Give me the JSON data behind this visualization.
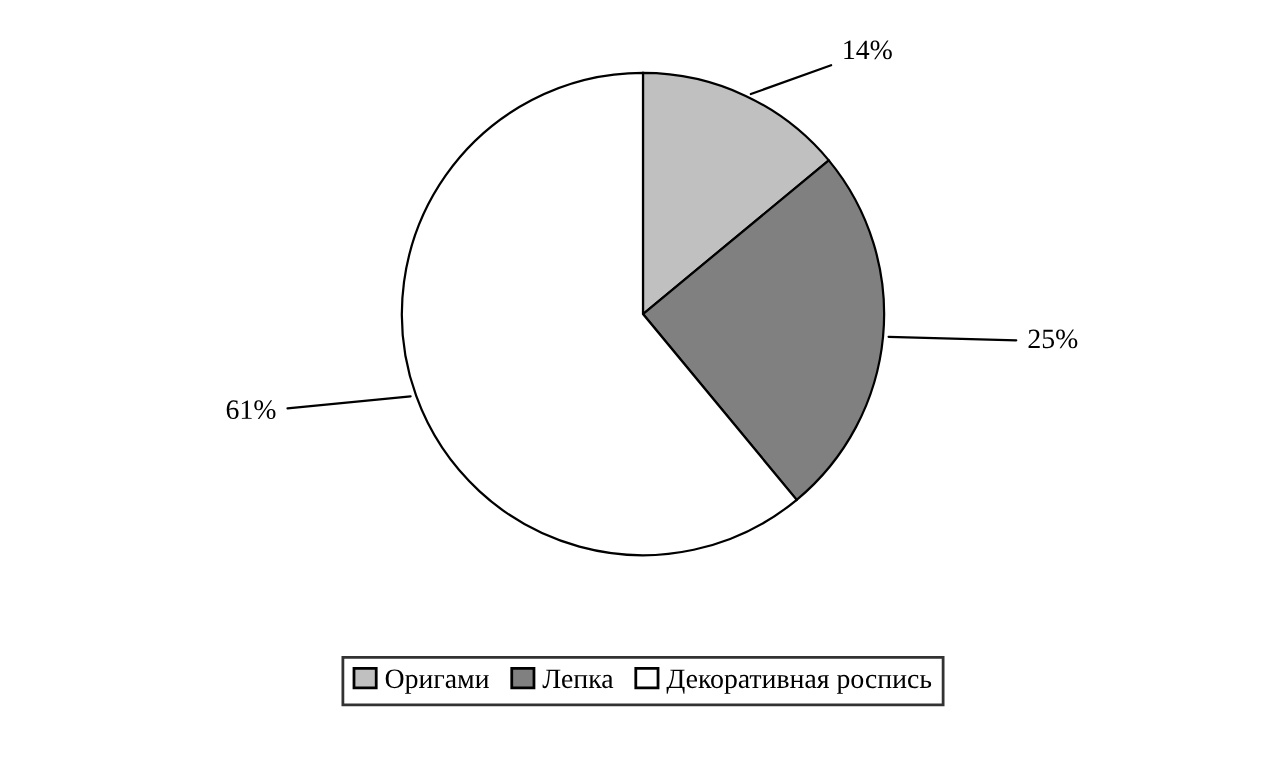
{
  "chart_data": {
    "type": "pie",
    "categories": [
      "Оригами",
      "Лепка",
      "Декоративная роспись"
    ],
    "values": [
      14,
      25,
      61
    ],
    "colors": [
      "#c0c0c0",
      "#808080",
      "#ffffff"
    ],
    "value_labels": [
      "14%",
      "25%",
      "61%"
    ],
    "legend": "bottom"
  }
}
